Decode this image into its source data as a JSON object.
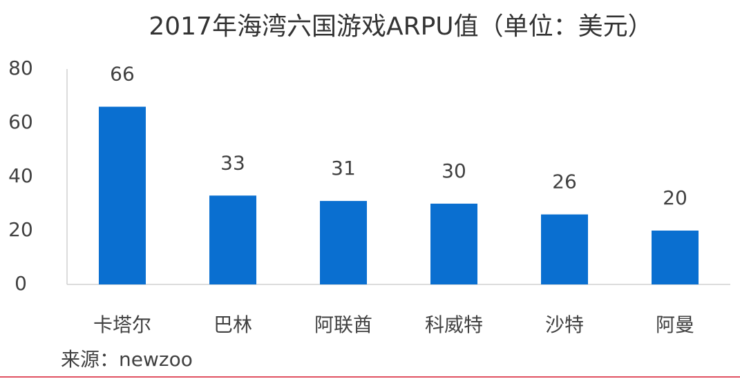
{
  "chart_data": {
    "type": "bar",
    "title": "2017年海湾六国游戏ARPU值（单位：美元）",
    "categories": [
      "卡塔尔",
      "巴林",
      "阿联酋",
      "科威特",
      "沙特",
      "阿曼"
    ],
    "values": [
      66,
      33,
      31,
      30,
      26,
      20
    ],
    "color": "#0a6fd0",
    "ylim": [
      0,
      80
    ],
    "yticks": [
      0,
      20,
      40,
      60,
      80
    ],
    "grid": false,
    "source": "来源：newzoo"
  }
}
